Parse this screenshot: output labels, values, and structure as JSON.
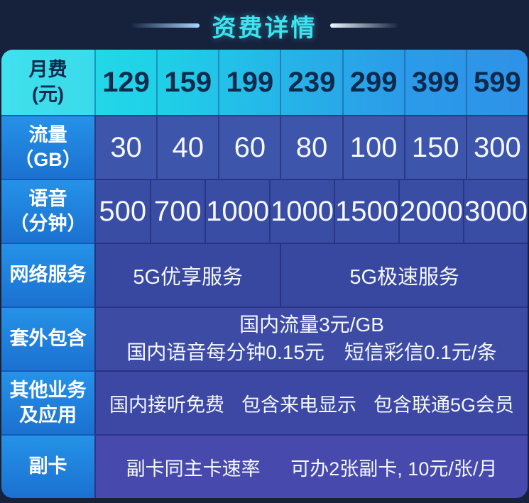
{
  "header": {
    "title": "资费详情"
  },
  "table": {
    "row_monthly": {
      "label_line1": "月费",
      "label_line2": "(元)",
      "values": [
        "129",
        "159",
        "199",
        "239",
        "299",
        "399",
        "599"
      ]
    },
    "row_data": {
      "label_line1": "流量",
      "label_line2": "（GB）",
      "values": [
        "30",
        "40",
        "60",
        "80",
        "100",
        "150",
        "300"
      ]
    },
    "row_voice": {
      "label_line1": "语音",
      "label_line2": "（分钟）",
      "values": [
        "500",
        "700",
        "1000",
        "1000",
        "1500",
        "2000",
        "3000"
      ]
    },
    "row_network": {
      "label": "网络服务",
      "service_left": "5G优享服务",
      "service_right": "5G极速服务"
    },
    "row_overage": {
      "label": "套外包含",
      "line1": "国内流量3元/GB",
      "line2": "国内语音每分钟0.15元　短信彩信0.1元/条"
    },
    "row_other": {
      "label_line1": "其他业务",
      "label_line2": "及应用",
      "phrases": [
        "国内接听免费",
        "包含来电显示",
        "包含联通5G会员"
      ]
    },
    "row_subcard": {
      "label": "副卡",
      "text_left": "副卡同主卡速率",
      "text_right": "可办2张副卡, 10元/张/月"
    }
  },
  "colors": {
    "background": "#16213C",
    "title_text": "#3DE3F0",
    "row1_gradient_start": "#26DCEA",
    "row1_gradient_end": "#2E92E8",
    "row1_text": "#0D2A4C",
    "label_cell_top": "#2592E8",
    "label_cell_bottom": "#1B71D0",
    "content_row_first": "#3D55AB",
    "content_row_last": "#4849AC",
    "content_text": "#FFFFFF"
  }
}
